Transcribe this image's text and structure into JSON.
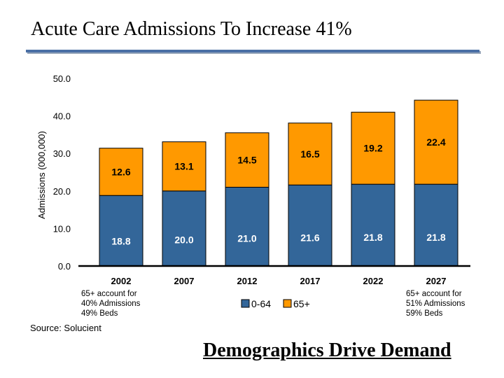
{
  "title": "Acute Care Admissions To Increase 41%",
  "colors": {
    "rule": "#4a6fa5",
    "series_0_64": "#336699",
    "series_65plus": "#ff9900"
  },
  "chart_data": {
    "type": "bar",
    "stacked": true,
    "categories": [
      "2002",
      "2007",
      "2012",
      "2017",
      "2022",
      "2027"
    ],
    "series": [
      {
        "name": "0-64",
        "values": [
          18.8,
          20.0,
          21.0,
          21.6,
          21.8,
          21.8
        ],
        "color": "#336699"
      },
      {
        "name": "65+",
        "values": [
          12.6,
          13.1,
          14.5,
          16.5,
          19.2,
          22.4
        ],
        "color": "#ff9900"
      }
    ],
    "ylabel": "Admissions (000,000)",
    "ylim": [
      0,
      50
    ],
    "yticks": [
      "0.0",
      "10.0",
      "20.0",
      "30.0",
      "40.0",
      "50.0"
    ],
    "grid": false,
    "legend": "bottom-center",
    "data_labels": true
  },
  "notes": {
    "left": [
      "65+ account for",
      "40%  Admissions",
      "49% Beds"
    ],
    "right": [
      "65+ account for",
      "51%  Admissions",
      "59% Beds"
    ]
  },
  "source": "Source: Solucient",
  "tagline": "Demographics Drive Demand"
}
